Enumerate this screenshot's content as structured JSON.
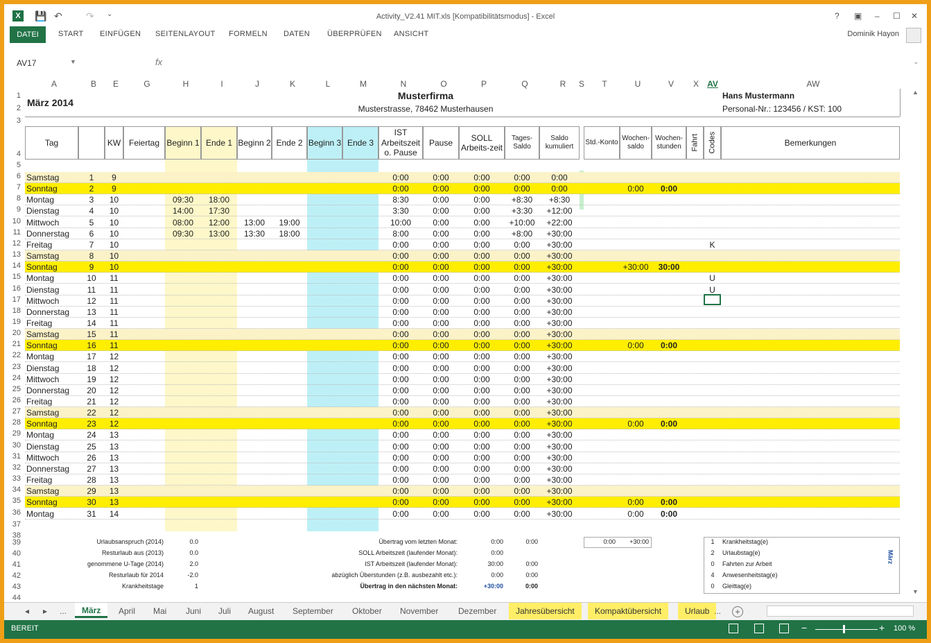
{
  "window": {
    "title": "Activity_V2.41 MIT.xls  [Kompatibilitätsmodus] - Excel",
    "help": "?",
    "minimize": "–",
    "maximize": "☐",
    "close": "✕"
  },
  "ribbon": {
    "file": "DATEI",
    "tabs": [
      "START",
      "EINFÜGEN",
      "SEITENLAYOUT",
      "FORMELN",
      "DATEN",
      "ÜBERPRÜFEN",
      "ANSICHT"
    ],
    "user": "Dominik Hayon"
  },
  "formula_bar": {
    "namebox": "AV17",
    "fx": "fx",
    "value": ""
  },
  "columns": [
    "A",
    "B",
    "E",
    "G",
    "H",
    "I",
    "J",
    "K",
    "L",
    "M",
    "N",
    "O",
    "P",
    "Q",
    "R",
    "S",
    "T",
    "U",
    "V",
    "X",
    "AV",
    "AW"
  ],
  "header": {
    "month": "März 2014",
    "company": "Musterfirma",
    "address": "Musterstrasse, 78462 Musterhausen",
    "employee": "Hans Mustermann",
    "personal": "Personal-Nr.: 123456 / KST: 100"
  },
  "table_headers": {
    "tag": "Tag",
    "kw": "KW",
    "feiertag": "Feiertag",
    "beginn1": "Beginn 1",
    "ende1": "Ende 1",
    "beginn2": "Beginn 2",
    "ende2": "Ende 2",
    "beginn3": "Beginn 3",
    "ende3": "Ende 3",
    "ist": "IST Arbeitszeit o. Pause",
    "pause": "Pause",
    "soll": "SOLL Arbeits-zeit",
    "tagessaldo": "Tages-Saldo",
    "saldo": "Saldo kumuliert",
    "stdkonto": "Std.-Konto",
    "wochensaldo": "Wochen-saldo",
    "wochenstunden": "Wochen-stunden",
    "fahrt": "Fahrt",
    "codes": "Codes",
    "bemerkungen": "Bemerkungen"
  },
  "rows": [
    {
      "r": "6",
      "day": "Samstag",
      "d": "1",
      "kw": "9",
      "b1": "",
      "e1": "",
      "b2": "",
      "e2": "",
      "ist": "0:00",
      "pause": "0:00",
      "soll": "0:00",
      "ts": "0:00",
      "sk": "0:00",
      "ws": "",
      "wh": "",
      "code": "",
      "type": "sat"
    },
    {
      "r": "7",
      "day": "Sonntag",
      "d": "2",
      "kw": "9",
      "b1": "",
      "e1": "",
      "b2": "",
      "e2": "",
      "ist": "0:00",
      "pause": "0:00",
      "soll": "0:00",
      "ts": "0:00",
      "sk": "0:00",
      "ws": "0:00",
      "wh": "0:00",
      "code": "",
      "type": "sun"
    },
    {
      "r": "8",
      "day": "Montag",
      "d": "3",
      "kw": "10",
      "b1": "09:30",
      "e1": "18:00",
      "b2": "",
      "e2": "",
      "ist": "8:30",
      "pause": "0:00",
      "soll": "0:00",
      "ts": "+8:30",
      "sk": "+8:30",
      "ws": "",
      "wh": "",
      "code": "",
      "type": ""
    },
    {
      "r": "9",
      "day": "Dienstag",
      "d": "4",
      "kw": "10",
      "b1": "14:00",
      "e1": "17:30",
      "b2": "",
      "e2": "",
      "ist": "3:30",
      "pause": "0:00",
      "soll": "0:00",
      "ts": "+3:30",
      "sk": "+12:00",
      "ws": "",
      "wh": "",
      "code": "",
      "type": ""
    },
    {
      "r": "10",
      "day": "Mittwoch",
      "d": "5",
      "kw": "10",
      "b1": "08:00",
      "e1": "12:00",
      "b2": "13:00",
      "e2": "19:00",
      "ist": "10:00",
      "pause": "0:00",
      "soll": "0:00",
      "ts": "+10:00",
      "sk": "+22:00",
      "ws": "",
      "wh": "",
      "code": "",
      "type": ""
    },
    {
      "r": "11",
      "day": "Donnerstag",
      "d": "6",
      "kw": "10",
      "b1": "09:30",
      "e1": "13:00",
      "b2": "13:30",
      "e2": "18:00",
      "ist": "8:00",
      "pause": "0:00",
      "soll": "0:00",
      "ts": "+8:00",
      "sk": "+30:00",
      "ws": "",
      "wh": "",
      "code": "",
      "type": ""
    },
    {
      "r": "12",
      "day": "Freitag",
      "d": "7",
      "kw": "10",
      "b1": "",
      "e1": "",
      "b2": "",
      "e2": "",
      "ist": "0:00",
      "pause": "0:00",
      "soll": "0:00",
      "ts": "0:00",
      "sk": "+30:00",
      "ws": "",
      "wh": "",
      "code": "K",
      "type": ""
    },
    {
      "r": "13",
      "day": "Samstag",
      "d": "8",
      "kw": "10",
      "b1": "",
      "e1": "",
      "b2": "",
      "e2": "",
      "ist": "0:00",
      "pause": "0:00",
      "soll": "0:00",
      "ts": "0:00",
      "sk": "+30:00",
      "ws": "",
      "wh": "",
      "code": "",
      "type": "sat"
    },
    {
      "r": "14",
      "day": "Sonntag",
      "d": "9",
      "kw": "10",
      "b1": "",
      "e1": "",
      "b2": "",
      "e2": "",
      "ist": "0:00",
      "pause": "0:00",
      "soll": "0:00",
      "ts": "0:00",
      "sk": "+30:00",
      "ws": "+30:00",
      "wh": "30:00",
      "code": "",
      "type": "sun"
    },
    {
      "r": "15",
      "day": "Montag",
      "d": "10",
      "kw": "11",
      "b1": "",
      "e1": "",
      "b2": "",
      "e2": "",
      "ist": "0:00",
      "pause": "0:00",
      "soll": "0:00",
      "ts": "0:00",
      "sk": "+30:00",
      "ws": "",
      "wh": "",
      "code": "U",
      "type": ""
    },
    {
      "r": "16",
      "day": "Dienstag",
      "d": "11",
      "kw": "11",
      "b1": "",
      "e1": "",
      "b2": "",
      "e2": "",
      "ist": "0:00",
      "pause": "0:00",
      "soll": "0:00",
      "ts": "0:00",
      "sk": "+30:00",
      "ws": "",
      "wh": "",
      "code": "U",
      "type": ""
    },
    {
      "r": "17",
      "day": "Mittwoch",
      "d": "12",
      "kw": "11",
      "b1": "",
      "e1": "",
      "b2": "",
      "e2": "",
      "ist": "0:00",
      "pause": "0:00",
      "soll": "0:00",
      "ts": "0:00",
      "sk": "+30:00",
      "ws": "",
      "wh": "",
      "code": "",
      "type": ""
    },
    {
      "r": "18",
      "day": "Donnerstag",
      "d": "13",
      "kw": "11",
      "b1": "",
      "e1": "",
      "b2": "",
      "e2": "",
      "ist": "0:00",
      "pause": "0:00",
      "soll": "0:00",
      "ts": "0:00",
      "sk": "+30:00",
      "ws": "",
      "wh": "",
      "code": "",
      "type": ""
    },
    {
      "r": "19",
      "day": "Freitag",
      "d": "14",
      "kw": "11",
      "b1": "",
      "e1": "",
      "b2": "",
      "e2": "",
      "ist": "0:00",
      "pause": "0:00",
      "soll": "0:00",
      "ts": "0:00",
      "sk": "+30:00",
      "ws": "",
      "wh": "",
      "code": "",
      "type": ""
    },
    {
      "r": "20",
      "day": "Samstag",
      "d": "15",
      "kw": "11",
      "b1": "",
      "e1": "",
      "b2": "",
      "e2": "",
      "ist": "0:00",
      "pause": "0:00",
      "soll": "0:00",
      "ts": "0:00",
      "sk": "+30:00",
      "ws": "",
      "wh": "",
      "code": "",
      "type": "sat"
    },
    {
      "r": "21",
      "day": "Sonntag",
      "d": "16",
      "kw": "11",
      "b1": "",
      "e1": "",
      "b2": "",
      "e2": "",
      "ist": "0:00",
      "pause": "0:00",
      "soll": "0:00",
      "ts": "0:00",
      "sk": "+30:00",
      "ws": "0:00",
      "wh": "0:00",
      "code": "",
      "type": "sun"
    },
    {
      "r": "22",
      "day": "Montag",
      "d": "17",
      "kw": "12",
      "b1": "",
      "e1": "",
      "b2": "",
      "e2": "",
      "ist": "0:00",
      "pause": "0:00",
      "soll": "0:00",
      "ts": "0:00",
      "sk": "+30:00",
      "ws": "",
      "wh": "",
      "code": "",
      "type": ""
    },
    {
      "r": "23",
      "day": "Dienstag",
      "d": "18",
      "kw": "12",
      "b1": "",
      "e1": "",
      "b2": "",
      "e2": "",
      "ist": "0:00",
      "pause": "0:00",
      "soll": "0:00",
      "ts": "0:00",
      "sk": "+30:00",
      "ws": "",
      "wh": "",
      "code": "",
      "type": ""
    },
    {
      "r": "24",
      "day": "Mittwoch",
      "d": "19",
      "kw": "12",
      "b1": "",
      "e1": "",
      "b2": "",
      "e2": "",
      "ist": "0:00",
      "pause": "0:00",
      "soll": "0:00",
      "ts": "0:00",
      "sk": "+30:00",
      "ws": "",
      "wh": "",
      "code": "",
      "type": ""
    },
    {
      "r": "25",
      "day": "Donnerstag",
      "d": "20",
      "kw": "12",
      "b1": "",
      "e1": "",
      "b2": "",
      "e2": "",
      "ist": "0:00",
      "pause": "0:00",
      "soll": "0:00",
      "ts": "0:00",
      "sk": "+30:00",
      "ws": "",
      "wh": "",
      "code": "",
      "type": ""
    },
    {
      "r": "26",
      "day": "Freitag",
      "d": "21",
      "kw": "12",
      "b1": "",
      "e1": "",
      "b2": "",
      "e2": "",
      "ist": "0:00",
      "pause": "0:00",
      "soll": "0:00",
      "ts": "0:00",
      "sk": "+30:00",
      "ws": "",
      "wh": "",
      "code": "",
      "type": ""
    },
    {
      "r": "27",
      "day": "Samstag",
      "d": "22",
      "kw": "12",
      "b1": "",
      "e1": "",
      "b2": "",
      "e2": "",
      "ist": "0:00",
      "pause": "0:00",
      "soll": "0:00",
      "ts": "0:00",
      "sk": "+30:00",
      "ws": "",
      "wh": "",
      "code": "",
      "type": "sat"
    },
    {
      "r": "28",
      "day": "Sonntag",
      "d": "23",
      "kw": "12",
      "b1": "",
      "e1": "",
      "b2": "",
      "e2": "",
      "ist": "0:00",
      "pause": "0:00",
      "soll": "0:00",
      "ts": "0:00",
      "sk": "+30:00",
      "ws": "0:00",
      "wh": "0:00",
      "code": "",
      "type": "sun"
    },
    {
      "r": "29",
      "day": "Montag",
      "d": "24",
      "kw": "13",
      "b1": "",
      "e1": "",
      "b2": "",
      "e2": "",
      "ist": "0:00",
      "pause": "0:00",
      "soll": "0:00",
      "ts": "0:00",
      "sk": "+30:00",
      "ws": "",
      "wh": "",
      "code": "",
      "type": ""
    },
    {
      "r": "30",
      "day": "Dienstag",
      "d": "25",
      "kw": "13",
      "b1": "",
      "e1": "",
      "b2": "",
      "e2": "",
      "ist": "0:00",
      "pause": "0:00",
      "soll": "0:00",
      "ts": "0:00",
      "sk": "+30:00",
      "ws": "",
      "wh": "",
      "code": "",
      "type": ""
    },
    {
      "r": "31",
      "day": "Mittwoch",
      "d": "26",
      "kw": "13",
      "b1": "",
      "e1": "",
      "b2": "",
      "e2": "",
      "ist": "0:00",
      "pause": "0:00",
      "soll": "0:00",
      "ts": "0:00",
      "sk": "+30:00",
      "ws": "",
      "wh": "",
      "code": "",
      "type": ""
    },
    {
      "r": "32",
      "day": "Donnerstag",
      "d": "27",
      "kw": "13",
      "b1": "",
      "e1": "",
      "b2": "",
      "e2": "",
      "ist": "0:00",
      "pause": "0:00",
      "soll": "0:00",
      "ts": "0:00",
      "sk": "+30:00",
      "ws": "",
      "wh": "",
      "code": "",
      "type": ""
    },
    {
      "r": "33",
      "day": "Freitag",
      "d": "28",
      "kw": "13",
      "b1": "",
      "e1": "",
      "b2": "",
      "e2": "",
      "ist": "0:00",
      "pause": "0:00",
      "soll": "0:00",
      "ts": "0:00",
      "sk": "+30:00",
      "ws": "",
      "wh": "",
      "code": "",
      "type": ""
    },
    {
      "r": "34",
      "day": "Samstag",
      "d": "29",
      "kw": "13",
      "b1": "",
      "e1": "",
      "b2": "",
      "e2": "",
      "ist": "0:00",
      "pause": "0:00",
      "soll": "0:00",
      "ts": "0:00",
      "sk": "+30:00",
      "ws": "",
      "wh": "",
      "code": "",
      "type": "sat"
    },
    {
      "r": "35",
      "day": "Sonntag",
      "d": "30",
      "kw": "13",
      "b1": "",
      "e1": "",
      "b2": "",
      "e2": "",
      "ist": "0:00",
      "pause": "0:00",
      "soll": "0:00",
      "ts": "0:00",
      "sk": "+30:00",
      "ws": "0:00",
      "wh": "0:00",
      "code": "",
      "type": "sun"
    },
    {
      "r": "36",
      "day": "Montag",
      "d": "31",
      "kw": "14",
      "b1": "",
      "e1": "",
      "b2": "",
      "e2": "",
      "ist": "0:00",
      "pause": "0:00",
      "soll": "0:00",
      "ts": "0:00",
      "sk": "+30:00",
      "ws": "0:00",
      "wh": "0:00",
      "code": "",
      "type": ""
    }
  ],
  "summary_left": [
    {
      "label": "Urlaubsanspruch (2014)",
      "value": "0.0"
    },
    {
      "label": "Resturlaub aus (2013)",
      "value": "0.0"
    },
    {
      "label": "genommene U-Tage (2014)",
      "value": "2.0"
    },
    {
      "label": "Resturlaub für 2014",
      "value": "-2.0"
    },
    {
      "label": "Krankheitstage",
      "value": "1"
    }
  ],
  "summary_mid": [
    {
      "label": "Übertrag vom letzten Monat:",
      "v1": "0:00",
      "v2": "0:00"
    },
    {
      "label": "SOLL Arbeitszeit (laufender Monat):",
      "v1": "0:00",
      "v2": ""
    },
    {
      "label": "IST Arbeitszeit (laufender Monat):",
      "v1": "30:00",
      "v2": "0:00"
    },
    {
      "label": "abzüglich Überstunden (z.B. ausbezahlt etc.):",
      "v1": "0:00",
      "v2": "0:00"
    },
    {
      "label": "Übertrag in den nächsten Monat:",
      "v1": "+30:00",
      "v2": "0:00"
    }
  ],
  "summary_konto": {
    "a": "0:00",
    "b": "+30:00"
  },
  "codes_legend": [
    {
      "n": "1",
      "t": "Krankheitstag(e)"
    },
    {
      "n": "2",
      "t": "Urlaubstag(e)"
    },
    {
      "n": "0",
      "t": "Fahrten zur Arbeit"
    },
    {
      "n": "4",
      "t": "Anwesenheitstag(e)"
    },
    {
      "n": "0",
      "t": "Gleittag(e)"
    }
  ],
  "codes_side": "März",
  "sheet_tabs": [
    "März",
    "April",
    "Mai",
    "Juni",
    "Juli",
    "August",
    "September",
    "Oktober",
    "November",
    "Dezember",
    "Jahresübersicht",
    "Kompaktübersicht",
    "Urlaub"
  ],
  "sheet_nav": {
    "prev": "◂",
    "next": "▸",
    "more": "...",
    "add": "+"
  },
  "status": {
    "ready": "BEREIT",
    "zoom": "100 %",
    "minus": "−",
    "plus": "+"
  }
}
